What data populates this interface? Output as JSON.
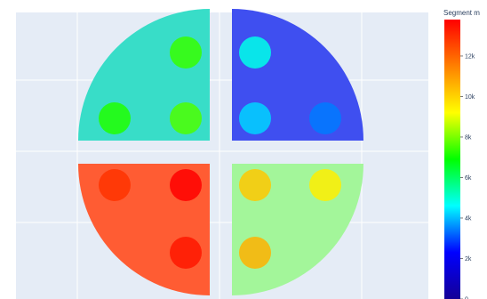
{
  "chart_data": {
    "type": "heatmap",
    "title": "",
    "xlabel": "",
    "ylabel": "",
    "grid": true,
    "colorscale": "rainbow",
    "colorscale_colors": [
      "#150096",
      "#0000ff",
      "#00ffff",
      "#00ff00",
      "#ffff00",
      "#ff8000",
      "#ff0000"
    ],
    "plot_background": "#e5ecf6",
    "colorbar": {
      "title": "Segment m",
      "range": [
        0,
        13800
      ],
      "ticks": [
        {
          "value": 0,
          "label": "0"
        },
        {
          "value": 2000,
          "label": "2k"
        },
        {
          "value": 4000,
          "label": "4k"
        },
        {
          "value": 6000,
          "label": "6k"
        },
        {
          "value": 8000,
          "label": "8k"
        },
        {
          "value": 10000,
          "label": "10k"
        },
        {
          "value": 12000,
          "label": "12k"
        }
      ]
    },
    "quadrants": [
      {
        "name": "top-left",
        "value": 6400,
        "color": "#38ddc8",
        "circles": [
          {
            "position": "outer-top",
            "value": 7400
          },
          {
            "position": "lower-left",
            "value": 7200
          },
          {
            "position": "lower-right",
            "value": 7600
          }
        ]
      },
      {
        "name": "top-right",
        "value": 1700,
        "color": "#3f4ff0",
        "circles": [
          {
            "position": "upper-left",
            "value": 4800
          },
          {
            "position": "lower-left",
            "value": 4200
          },
          {
            "position": "lower-right",
            "value": 3400
          }
        ]
      },
      {
        "name": "bottom-left",
        "value": 12100,
        "color": "#ff5c33",
        "circles": [
          {
            "position": "upper-left",
            "value": 12900
          },
          {
            "position": "upper-right",
            "value": 13800
          },
          {
            "position": "lower-right",
            "value": 13400
          }
        ]
      },
      {
        "name": "bottom-right",
        "value": 8200,
        "color": "#a3f69a",
        "circles": [
          {
            "position": "upper-left",
            "value": 10200
          },
          {
            "position": "upper-right",
            "value": 9500
          },
          {
            "position": "lower-left",
            "value": 10600
          }
        ]
      }
    ]
  }
}
